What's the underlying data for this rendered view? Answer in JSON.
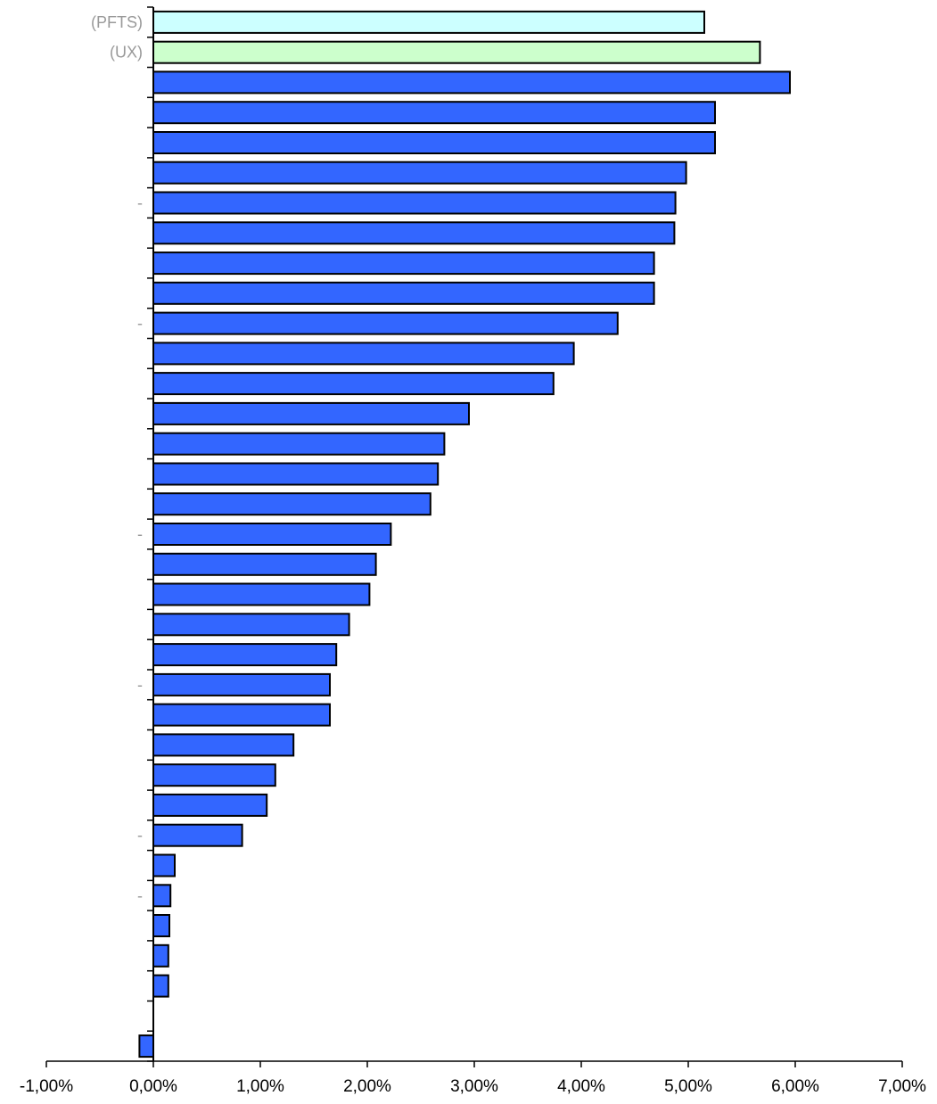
{
  "chart_data": {
    "type": "bar",
    "orientation": "horizontal",
    "title": "",
    "xlabel": "",
    "ylabel": "",
    "xlim": [
      -0.01,
      0.07
    ],
    "x_ticks": [
      -0.01,
      0,
      0.01,
      0.02,
      0.03,
      0.04,
      0.05,
      0.06,
      0.07
    ],
    "x_tick_labels": [
      "-1,00%",
      "0,00%",
      "1,00%",
      "2,00%",
      "3,00%",
      "4,00%",
      "5,00%",
      "6,00%",
      "7,00%"
    ],
    "grid": false,
    "legend": "none",
    "categories": [
      "(PFTS)",
      "(UX)",
      "",
      "",
      "",
      "",
      "-",
      "",
      "",
      "",
      "-",
      "",
      "",
      "",
      "",
      "",
      "",
      "-",
      "",
      "",
      "",
      "",
      "-",
      "",
      "",
      "",
      "",
      "-",
      "",
      "-",
      "",
      "",
      "",
      "",
      ""
    ],
    "values": [
      0.0515,
      0.0567,
      0.0595,
      0.0525,
      0.0525,
      0.0498,
      0.0488,
      0.0487,
      0.0468,
      0.0468,
      0.0434,
      0.0393,
      0.0374,
      0.0295,
      0.0272,
      0.0266,
      0.0259,
      0.0222,
      0.0208,
      0.0202,
      0.0183,
      0.0171,
      0.0165,
      0.0165,
      0.0131,
      0.0114,
      0.0106,
      0.0083,
      0.002,
      0.0016,
      0.0015,
      0.0014,
      0.0014,
      null,
      -0.0013
    ],
    "bar_colors": [
      "#ccffff",
      "#ccffcc",
      "#3366ff",
      "#3366ff",
      "#3366ff",
      "#3366ff",
      "#3366ff",
      "#3366ff",
      "#3366ff",
      "#3366ff",
      "#3366ff",
      "#3366ff",
      "#3366ff",
      "#3366ff",
      "#3366ff",
      "#3366ff",
      "#3366ff",
      "#3366ff",
      "#3366ff",
      "#3366ff",
      "#3366ff",
      "#3366ff",
      "#3366ff",
      "#3366ff",
      "#3366ff",
      "#3366ff",
      "#3366ff",
      "#3366ff",
      "#3366ff",
      "#3366ff",
      "#3366ff",
      "#3366ff",
      "#3366ff",
      "#3366ff",
      "#3366ff"
    ],
    "bar_outline_color": "#000000",
    "category_label_color": "#9a9a9a"
  }
}
